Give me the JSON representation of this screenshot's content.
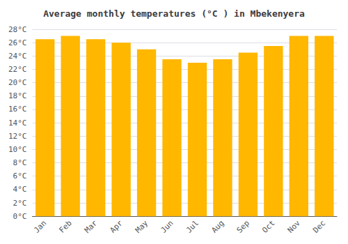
{
  "chart_data": {
    "type": "bar",
    "title": "Average monthly temperatures (°C ) in Mbekenyera",
    "categories": [
      "Jan",
      "Feb",
      "Mar",
      "Apr",
      "May",
      "Jun",
      "Jul",
      "Aug",
      "Sep",
      "Oct",
      "Nov",
      "Dec"
    ],
    "values": [
      26.5,
      27.0,
      26.5,
      26.0,
      25.0,
      23.5,
      23.0,
      23.5,
      24.5,
      25.5,
      27.0,
      27.0
    ],
    "color": "#FFB700",
    "ylim": [
      0,
      28
    ],
    "yticks": [
      {
        "value": 0,
        "label": "0°C"
      },
      {
        "value": 2,
        "label": "2°C"
      },
      {
        "value": 4,
        "label": "4°C"
      },
      {
        "value": 6,
        "label": "6°C"
      },
      {
        "value": 8,
        "label": "8°C"
      },
      {
        "value": 10,
        "label": "10°C"
      },
      {
        "value": 12,
        "label": "12°C"
      },
      {
        "value": 14,
        "label": "14°C"
      },
      {
        "value": 16,
        "label": "16°C"
      },
      {
        "value": 18,
        "label": "18°C"
      },
      {
        "value": 20,
        "label": "20°C"
      },
      {
        "value": 22,
        "label": "22°C"
      },
      {
        "value": 24,
        "label": "24°C"
      },
      {
        "value": 26,
        "label": "26°C"
      },
      {
        "value": 28,
        "label": "28°C"
      }
    ],
    "grid": true
  }
}
